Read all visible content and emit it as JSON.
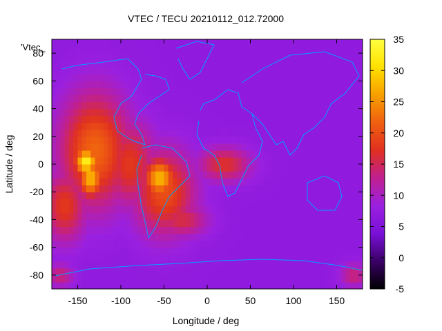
{
  "chart_data": {
    "type": "heatmap",
    "title": "VTEC / TECU 20210112_012.72000",
    "xlabel": "Longitude / deg",
    "ylabel": "Latitude / deg",
    "series_key": "'Vtec_",
    "xlim": [
      -180,
      180
    ],
    "ylim": [
      -90,
      90
    ],
    "x_ticks": [
      -150,
      -100,
      -50,
      0,
      50,
      100,
      150
    ],
    "y_ticks": [
      -80,
      -60,
      -40,
      -20,
      0,
      20,
      40,
      60,
      80
    ],
    "colorbar": {
      "range": [
        -5,
        35
      ],
      "ticks": [
        -5,
        0,
        5,
        10,
        15,
        20,
        25,
        30,
        35
      ],
      "palette": [
        "#000000",
        "#3a0066",
        "#7a10d8",
        "#9a20e0",
        "#c02090",
        "#e03020",
        "#f06010",
        "#f8a000",
        "#ffe000",
        "#ffff40"
      ]
    },
    "background_level": 7,
    "hotspots": [
      {
        "lon": -140,
        "lat": 2,
        "peak": 33,
        "radius_lon": 14,
        "radius_lat": 10
      },
      {
        "lon": -135,
        "lat": -10,
        "peak": 28,
        "radius_lon": 14,
        "radius_lat": 14
      },
      {
        "lon": -130,
        "lat": 10,
        "peak": 22,
        "radius_lon": 40,
        "radius_lat": 40
      },
      {
        "lon": -55,
        "lat": -10,
        "peak": 28,
        "radius_lon": 18,
        "radius_lat": 14
      },
      {
        "lon": -50,
        "lat": -20,
        "peak": 20,
        "radius_lon": 35,
        "radius_lat": 30
      },
      {
        "lon": -90,
        "lat": 0,
        "peak": 18,
        "radius_lon": 30,
        "radius_lat": 30
      },
      {
        "lon": 20,
        "lat": 0,
        "peak": 17,
        "radius_lon": 30,
        "radius_lat": 12
      },
      {
        "lon": -30,
        "lat": -40,
        "peak": 16,
        "radius_lon": 30,
        "radius_lat": 12
      },
      {
        "lon": -165,
        "lat": -30,
        "peak": 18,
        "radius_lon": 25,
        "radius_lat": 25
      },
      {
        "lon": -170,
        "lat": -80,
        "peak": 14,
        "radius_lon": 15,
        "radius_lat": 8
      },
      {
        "lon": 170,
        "lat": -80,
        "peak": 14,
        "radius_lon": 15,
        "radius_lat": 8
      }
    ],
    "coastline_color": "#00a0ff",
    "grid": false
  }
}
